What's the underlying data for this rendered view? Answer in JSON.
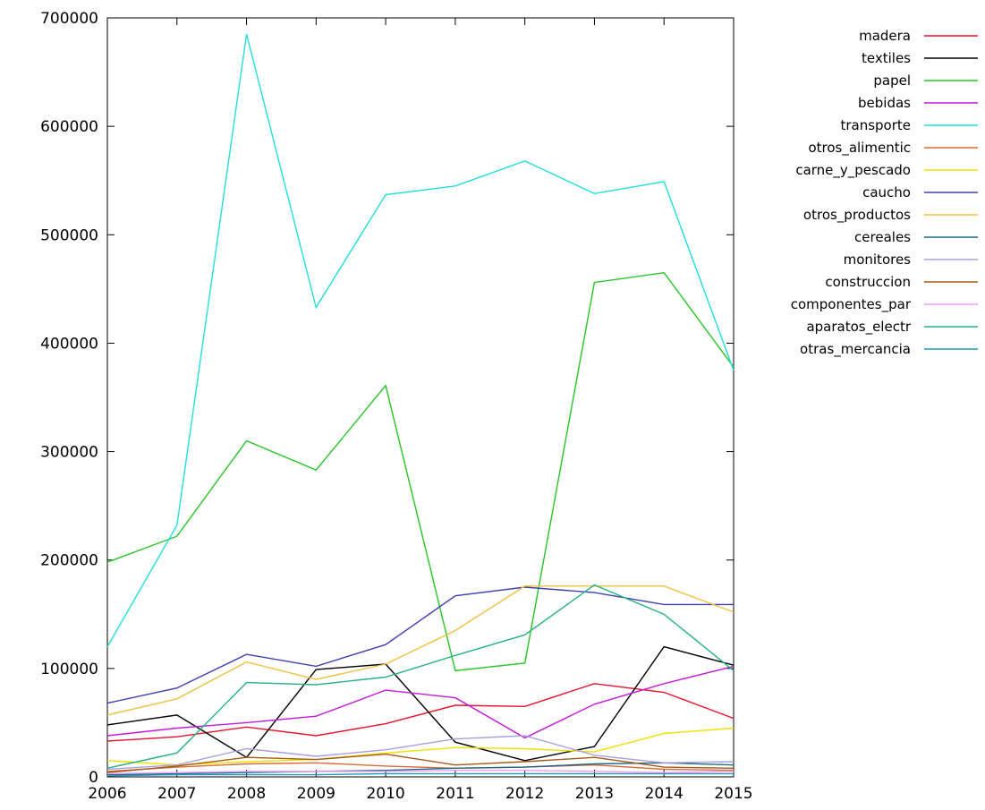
{
  "chart_data": {
    "type": "line",
    "title": "",
    "xlabel": "",
    "ylabel": "",
    "x": [
      "2006",
      "2007",
      "2008",
      "2009",
      "2010",
      "2011",
      "2012",
      "2013",
      "2014",
      "2015"
    ],
    "ylim": [
      0,
      700000
    ],
    "yticks": [
      "0",
      "100000",
      "200000",
      "300000",
      "400000",
      "500000",
      "600000",
      "700000"
    ],
    "grid": false,
    "legend_position": "right",
    "series": [
      {
        "name": "madera",
        "color": "#e8112d",
        "values": [
          33000,
          37000,
          46000,
          38000,
          49000,
          66000,
          65000,
          86000,
          78000,
          54000
        ]
      },
      {
        "name": "textiles",
        "color": "#000000",
        "values": [
          48000,
          57000,
          18000,
          99000,
          104000,
          32000,
          15000,
          28000,
          120000,
          103000
        ]
      },
      {
        "name": "papel",
        "color": "#28c428",
        "values": [
          198000,
          222000,
          310000,
          283000,
          361000,
          98000,
          105000,
          456000,
          465000,
          378000
        ]
      },
      {
        "name": "bebidas",
        "color": "#c21bd7",
        "values": [
          38000,
          45000,
          50000,
          56000,
          80000,
          73000,
          36000,
          67000,
          86000,
          102000
        ]
      },
      {
        "name": "transporte",
        "color": "#22dddd",
        "values": [
          120000,
          232000,
          685000,
          433000,
          537000,
          545000,
          568000,
          538000,
          549000,
          375000
        ]
      },
      {
        "name": "otros_alimentic",
        "color": "#d76b3a",
        "values": [
          5000,
          9000,
          12000,
          13000,
          10000,
          8000,
          9000,
          11000,
          7000,
          6000
        ]
      },
      {
        "name": "carne_y_pescado",
        "color": "#f0e000",
        "values": [
          15000,
          11000,
          14000,
          16000,
          22000,
          27000,
          26000,
          23000,
          40000,
          45000
        ]
      },
      {
        "name": "caucho",
        "color": "#4040b0",
        "values": [
          68000,
          82000,
          113000,
          102000,
          122000,
          167000,
          175000,
          170000,
          159000,
          159000
        ]
      },
      {
        "name": "otros_productos",
        "color": "#f0c040",
        "values": [
          57000,
          72000,
          106000,
          90000,
          104000,
          135000,
          176000,
          176000,
          176000,
          152000
        ]
      },
      {
        "name": "cereales",
        "color": "#1d6a87",
        "values": [
          2000,
          3000,
          4000,
          5000,
          6000,
          8000,
          9000,
          12000,
          13000,
          11000
        ]
      },
      {
        "name": "monitores",
        "color": "#a7a0e0",
        "values": [
          7000,
          11000,
          26000,
          19000,
          25000,
          35000,
          38000,
          20000,
          13000,
          14000
        ]
      },
      {
        "name": "construccion",
        "color": "#a45a1a",
        "values": [
          4000,
          10000,
          18000,
          16000,
          21000,
          11000,
          14000,
          18000,
          9000,
          8000
        ]
      },
      {
        "name": "componentes_par",
        "color": "#f59af5",
        "values": [
          3000,
          4000,
          5000,
          5000,
          5000,
          6000,
          6000,
          5000,
          4000,
          5000
        ]
      },
      {
        "name": "aparatos_electr",
        "color": "#28b088",
        "values": [
          8000,
          22000,
          87000,
          85000,
          92000,
          112000,
          131000,
          177000,
          150000,
          98000
        ]
      },
      {
        "name": "otras_mercancia",
        "color": "#1a9ab8",
        "values": [
          1000,
          2000,
          2000,
          2000,
          3000,
          3000,
          3000,
          3000,
          3000,
          3000
        ]
      }
    ]
  }
}
